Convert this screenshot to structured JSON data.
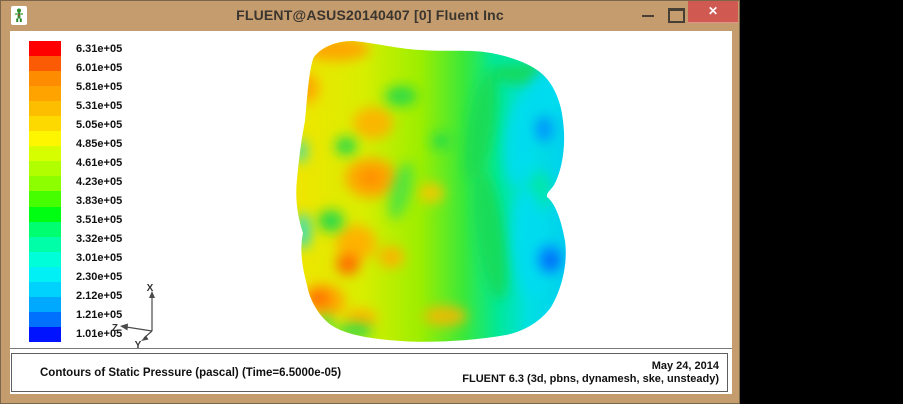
{
  "window": {
    "title": "FLUENT@ASUS20140407 [0] Fluent Inc",
    "controls": {
      "close_glyph": "✕"
    }
  },
  "legend": {
    "labels": [
      "6.31e+05",
      "6.01e+05",
      "5.81e+05",
      "5.31e+05",
      "5.05e+05",
      "4.85e+05",
      "4.61e+05",
      "4.23e+05",
      "3.83e+05",
      "3.51e+05",
      "3.32e+05",
      "3.01e+05",
      "2.30e+05",
      "2.12e+05",
      "1.21e+05",
      "1.01e+05"
    ],
    "band_colors": [
      "#fe0000",
      "#fb5b04",
      "#fe8c00",
      "#fea300",
      "#febe00",
      "#fed900",
      "#fef500",
      "#d7fe00",
      "#b0fe00",
      "#8cfe00",
      "#46fe00",
      "#00fe13",
      "#00fe71",
      "#00fea8",
      "#00fed9",
      "#00f0f5",
      "#00d2fe",
      "#00a8fe",
      "#0071fe",
      "#0013fe"
    ]
  },
  "triad": {
    "x_label": "X",
    "y_label": "Y",
    "z_label": "Z"
  },
  "caption": {
    "left_text": "Contours of Static Pressure (pascal)  (Time=6.5000e-05)",
    "date": "May 24, 2014",
    "solver_info": "FLUENT 6.3 (3d, pbns, dynamesh, ske, unsteady)"
  },
  "colors": {
    "titlebar": "#c59c6e",
    "close_button": "#d05a52",
    "desktop_background": "#000000"
  },
  "chart_data": {
    "type": "heatmap",
    "title": "Contours of Static Pressure (pascal)  (Time=6.5000e-05)",
    "units": "pascal",
    "time": "6.5000e-05",
    "contour_levels": [
      631000,
      601000,
      581000,
      531000,
      505000,
      485000,
      461000,
      423000,
      383000,
      351000,
      332000,
      301000,
      230000,
      212000,
      121000,
      101000
    ],
    "value_range": [
      101000,
      631000
    ],
    "colormap": "rainbow (blue = 1.01e+05 low, red = 6.31e+05 high)",
    "legend_position": "left",
    "description": "Pressure contours on a 3D twin-lobed cylinder surface: high pressure (orange/red ~5-6e5 Pa) spots on the left face, mid yellow/green bands in the middle, low pressure (cyan/blue ~1-3e5 Pa) on the right lobes"
  }
}
